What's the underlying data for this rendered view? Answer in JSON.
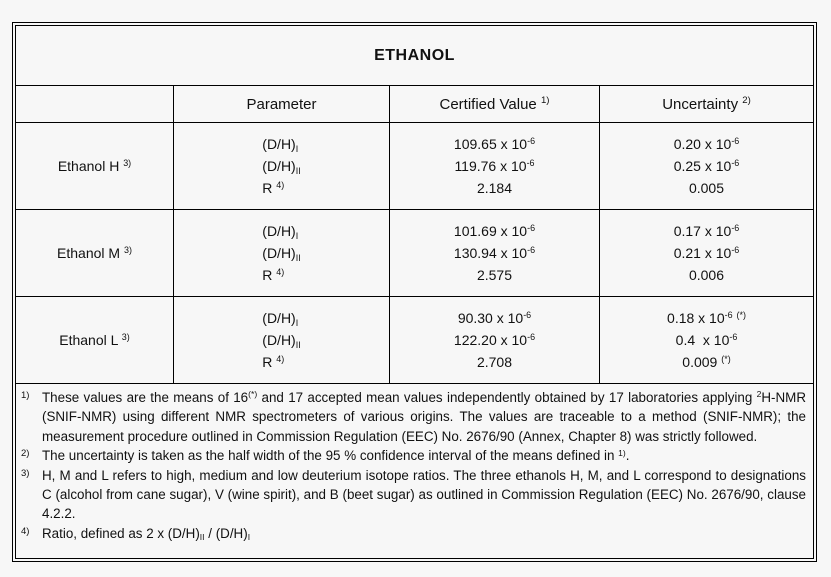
{
  "page": {
    "background": "#f7f7f7",
    "border_color": "#000000",
    "text_color": "#111111"
  },
  "title": "ETHANOL",
  "table": {
    "columns": {
      "sample": "",
      "parameter": "Parameter",
      "certified_value": "Certified Value ^{1)}",
      "uncertainty": "Uncertainty ^{2)}"
    },
    "rows": [
      {
        "sample": "Ethanol H ^{3)}",
        "parameters": [
          "(D/H)_{I}",
          "(D/H)_{II}",
          "R ^{4)}"
        ],
        "certified_values": [
          "109.65 x 10^{-6}",
          "119.76 x 10^{-6}",
          "2.184"
        ],
        "uncertainties": [
          "0.20 x 10^{-6}",
          "0.25 x 10^{-6}",
          "0.005"
        ]
      },
      {
        "sample": "Ethanol M ^{3)}",
        "parameters": [
          "(D/H)_{I}",
          "(D/H)_{II}",
          "R ^{4)}"
        ],
        "certified_values": [
          "101.69 x 10^{-6}",
          "130.94 x 10^{-6}",
          "2.575"
        ],
        "uncertainties": [
          "0.17 x 10^{-6}",
          "0.21 x 10^{-6}",
          "0.006"
        ]
      },
      {
        "sample": "Ethanol L ^{3)}",
        "parameters": [
          "(D/H)_{I}",
          "(D/H)_{II}",
          "R ^{4)}"
        ],
        "certified_values": [
          "90.30 x 10^{-6}",
          "122.20 x 10^{-6}",
          "2.708"
        ],
        "uncertainties": [
          "0.18 x 10^{-6} ^{(*)}",
          "0.4  x 10^{-6}",
          "0.009 ^{(*)}"
        ]
      }
    ]
  },
  "footnotes": [
    {
      "marker": "1)",
      "text": "These values are the means of 16^{(*)} and 17 accepted mean values independently obtained by 17 laboratories applying ^{2}H-NMR (SNIF-NMR) using different NMR spectrometers of various origins. The values are traceable to a method (SNIF-NMR); the measurement procedure outlined in Commission Regulation (EEC) No. 2676/90 (Annex, Chapter 8) was strictly followed."
    },
    {
      "marker": "2)",
      "text": "The uncertainty is taken as the half width of the 95 % confidence interval of the means defined in ^{1)}."
    },
    {
      "marker": "3)",
      "text": "H, M and L refers to high, medium and low deuterium isotope ratios. The three ethanols H, M, and L correspond to designations C (alcohol from cane sugar), V (wine spirit), and B (beet sugar) as outlined in Commission Regulation (EEC) No. 2676/90, clause 4.2.2."
    },
    {
      "marker": "4)",
      "text": "Ratio, defined as 2 x (D/H)_{II} / (D/H)_{I}"
    }
  ]
}
